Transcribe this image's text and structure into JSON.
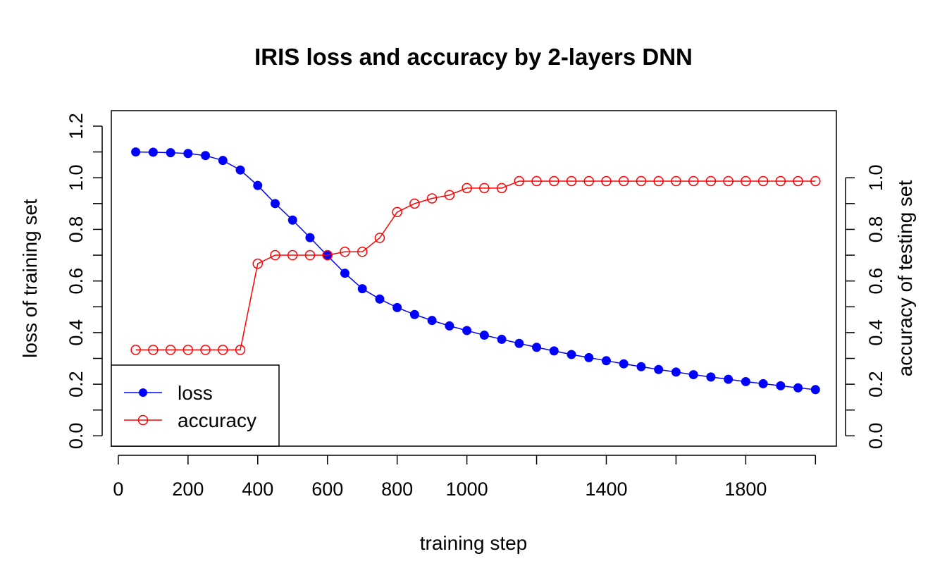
{
  "chart_data": {
    "type": "line",
    "title": "IRIS loss and accuracy by 2-layers DNN",
    "xlabel": "training step",
    "ylabel_left": "loss of training set",
    "ylabel_right": "accuracy of testing set",
    "xlim": [
      -20,
      2060
    ],
    "ylim_left": [
      -0.04,
      1.26
    ],
    "ylim_right": [
      -0.04,
      1.26
    ],
    "x_ticks": [
      0,
      200,
      400,
      600,
      800,
      1000,
      1200,
      1400,
      1600,
      1800,
      2000
    ],
    "x_tick_labels": [
      "0",
      "200",
      "400",
      "600",
      "800",
      "1000",
      "",
      "1400",
      "",
      "1800",
      ""
    ],
    "y_left_ticks": [
      0.0,
      0.1,
      0.2,
      0.3,
      0.4,
      0.5,
      0.6,
      0.7,
      0.8,
      0.9,
      1.0,
      1.1,
      1.2
    ],
    "y_left_tick_labels": [
      "0.0",
      "",
      "0.2",
      "",
      "0.4",
      "",
      "0.6",
      "",
      "0.8",
      "",
      "1.0",
      "",
      "1.2"
    ],
    "y_right_ticks": [
      0.0,
      0.1,
      0.2,
      0.3,
      0.4,
      0.5,
      0.6,
      0.7,
      0.8,
      0.9,
      1.0
    ],
    "y_right_tick_labels": [
      "0.0",
      "",
      "0.2",
      "",
      "0.4",
      "",
      "0.6",
      "",
      "0.8",
      "",
      "1.0"
    ],
    "grid": false,
    "legend_position": "bottom-left",
    "x": [
      50,
      100,
      150,
      200,
      250,
      300,
      350,
      400,
      450,
      500,
      550,
      600,
      650,
      700,
      750,
      800,
      850,
      900,
      950,
      1000,
      1050,
      1100,
      1150,
      1200,
      1250,
      1300,
      1350,
      1400,
      1450,
      1500,
      1550,
      1600,
      1650,
      1700,
      1750,
      1800,
      1850,
      1900,
      1950,
      2000
    ],
    "series": [
      {
        "name": "loss",
        "axis": "left",
        "color": "#0000ff",
        "marker": "filled-circle",
        "values": [
          1.1,
          1.099,
          1.097,
          1.094,
          1.086,
          1.067,
          1.03,
          0.97,
          0.9,
          0.836,
          0.768,
          0.698,
          0.63,
          0.57,
          0.53,
          0.497,
          0.47,
          0.447,
          0.426,
          0.408,
          0.39,
          0.374,
          0.358,
          0.343,
          0.329,
          0.315,
          0.303,
          0.291,
          0.279,
          0.268,
          0.257,
          0.247,
          0.237,
          0.228,
          0.219,
          0.21,
          0.202,
          0.194,
          0.186,
          0.179
        ]
      },
      {
        "name": "accuracy",
        "axis": "right",
        "color": "#ff0000",
        "marker": "open-circle",
        "values": [
          0.333,
          0.333,
          0.333,
          0.333,
          0.333,
          0.333,
          0.333,
          0.667,
          0.7,
          0.7,
          0.7,
          0.7,
          0.713,
          0.713,
          0.767,
          0.867,
          0.9,
          0.92,
          0.933,
          0.96,
          0.96,
          0.96,
          0.987,
          0.987,
          0.987,
          0.987,
          0.987,
          0.987,
          0.987,
          0.987,
          0.987,
          0.987,
          0.987,
          0.987,
          0.987,
          0.987,
          0.987,
          0.987,
          0.987,
          0.987
        ]
      }
    ]
  }
}
